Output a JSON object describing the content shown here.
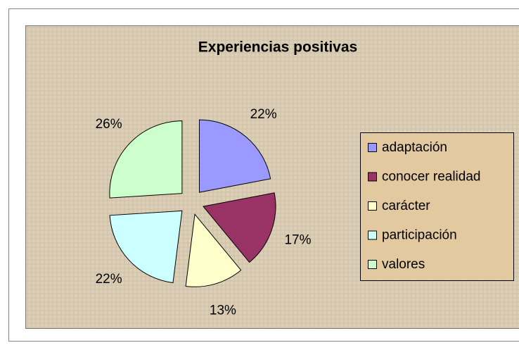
{
  "chart_data": {
    "type": "pie",
    "title": "Experiencias positivas",
    "categories": [
      "adaptación",
      "conocer realidad",
      "carácter",
      "participación",
      "valores"
    ],
    "values": [
      22,
      17,
      13,
      22,
      26
    ],
    "value_labels": [
      "22%",
      "17%",
      "13%",
      "22%",
      "26%"
    ],
    "colors": [
      "#9999ff",
      "#993366",
      "#ffffcc",
      "#ccffff",
      "#ccffcc"
    ],
    "legend": "right"
  }
}
